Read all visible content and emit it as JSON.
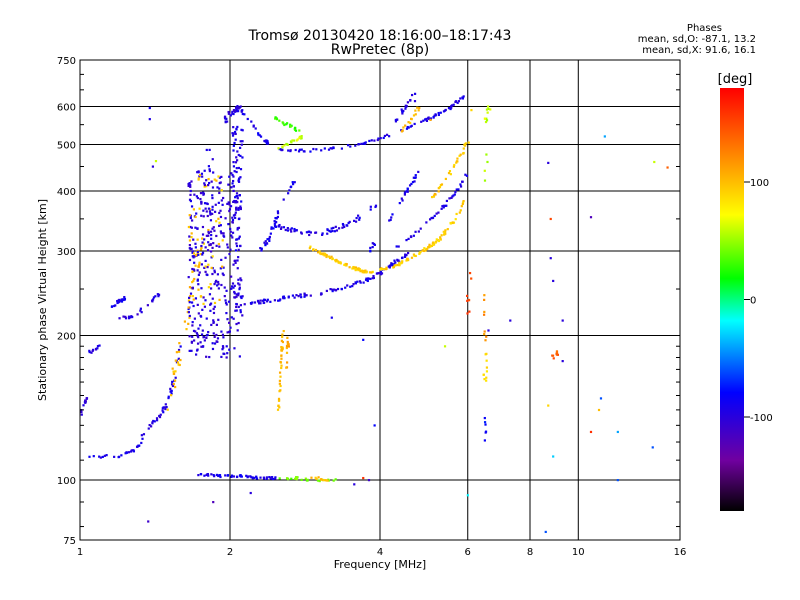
{
  "header": {
    "title": "Tromsø 20130420 18:16:00–18:17:43",
    "subtitle": "RwPretec (8p)",
    "phases_title": "Phases",
    "phases_o": "mean, sd,O: -87.1, 13.2",
    "phases_x": "mean, sd,X:  91.6, 16.1"
  },
  "colorbar": {
    "unit_label": "[deg]",
    "range": [
      -180,
      180
    ],
    "ticks": [
      {
        "value": 100,
        "label": "100"
      },
      {
        "value": 0,
        "label": "0"
      },
      {
        "value": -100,
        "label": "-100"
      }
    ]
  },
  "chart_data": {
    "type": "scatter",
    "title": "Tromsø 20130420 18:16:00–18:17:43",
    "subtitle": "RwPretec (8p)",
    "xlabel": "Frequency [MHz]",
    "ylabel": "Stationary phase Virtual Height [km]",
    "xscale": "log",
    "yscale": "log",
    "xlim": [
      1,
      16
    ],
    "ylim": [
      75,
      750
    ],
    "xticks": [
      {
        "value": 1,
        "label": "1"
      },
      {
        "value": 2,
        "label": "2"
      },
      {
        "value": 4,
        "label": "4"
      },
      {
        "value": 6,
        "label": "6"
      },
      {
        "value": 8,
        "label": "8"
      },
      {
        "value": 10,
        "label": "10"
      },
      {
        "value": 16,
        "label": "16"
      }
    ],
    "yticks": [
      {
        "value": 75,
        "label": "75"
      },
      {
        "value": 100,
        "label": "100"
      },
      {
        "value": 200,
        "label": "200"
      },
      {
        "value": 300,
        "label": "300"
      },
      {
        "value": 400,
        "label": "400"
      },
      {
        "value": 500,
        "label": "500"
      },
      {
        "value": 600,
        "label": "600"
      },
      {
        "value": 750,
        "label": "750"
      }
    ],
    "grid": true,
    "color_scale": [
      "#000000",
      "#7000a0",
      "#0000ff",
      "#00ffff",
      "#00ff00",
      "#ffff00",
      "#ff8000",
      "#ff0000"
    ],
    "traces": [
      {
        "mode": "curve",
        "phase": -95,
        "spread": 0.014,
        "n": 70,
        "x": [
          1,
          1.1,
          1.2,
          1.3,
          1.35,
          1.4,
          1.45,
          1.5,
          1.55,
          1.6,
          1.65,
          1.7
        ],
        "y": [
          112,
          112,
          112,
          116,
          126,
          132,
          137,
          145,
          165,
          195,
          230,
          260
        ]
      },
      {
        "mode": "curve",
        "phase": -100,
        "spread": 0.01,
        "n": 12,
        "x": [
          1,
          1.01,
          1.02,
          1.03
        ],
        "y": [
          135,
          140,
          145,
          148
        ]
      },
      {
        "mode": "curve",
        "phase": -95,
        "spread": 0.01,
        "n": 10,
        "x": [
          1.04,
          1.06,
          1.08,
          1.1
        ],
        "y": [
          185,
          185,
          188,
          193
        ]
      },
      {
        "mode": "curve",
        "phase": -100,
        "spread": 0.015,
        "n": 22,
        "x": [
          1.2,
          1.25,
          1.3,
          1.35,
          1.4,
          1.45
        ],
        "y": [
          218,
          218,
          222,
          230,
          238,
          245
        ]
      },
      {
        "mode": "curve",
        "phase": -90,
        "spread": 0.015,
        "n": 20,
        "x": [
          1.16,
          1.2,
          1.24
        ],
        "y": [
          230,
          235,
          240
        ]
      },
      {
        "mode": "curve",
        "phase": 100,
        "spread": 0.03,
        "n": 45,
        "x": [
          1.5,
          1.55,
          1.6,
          1.65,
          1.7,
          1.75
        ],
        "y": [
          140,
          165,
          195,
          225,
          260,
          310
        ]
      },
      {
        "mode": "block",
        "phase": -100,
        "spread": 0.03,
        "n": 320,
        "x": [
          1.65,
          2.1
        ],
        "y": [
          180,
          440
        ]
      },
      {
        "mode": "block",
        "phase": 95,
        "spread": 0.02,
        "n": 45,
        "x": [
          1.65,
          1.95
        ],
        "y": [
          230,
          440
        ]
      },
      {
        "mode": "block",
        "phase": -95,
        "spread": 0.02,
        "n": 90,
        "x": [
          2.02,
          2.12
        ],
        "y": [
          220,
          600
        ]
      },
      {
        "mode": "block",
        "phase": -100,
        "spread": 0.02,
        "n": 40,
        "x": [
          1.75,
          1.85
        ],
        "y": [
          300,
          500
        ]
      },
      {
        "mode": "curve",
        "phase": -100,
        "spread": 0.02,
        "n": 30,
        "x": [
          1.95,
          2.0,
          2.05,
          2.1
        ],
        "y": [
          560,
          580,
          590,
          600
        ]
      },
      {
        "mode": "curve",
        "phase": -95,
        "spread": 0.015,
        "n": 110,
        "x": [
          2.05,
          2.3,
          2.6,
          3.0,
          3.4,
          3.8,
          4.2,
          4.6
        ],
        "y": [
          232,
          235,
          240,
          245,
          252,
          262,
          280,
          300
        ]
      },
      {
        "mode": "curve",
        "phase": -92,
        "spread": 0.012,
        "n": 90,
        "x": [
          2.5,
          2.8,
          3.2,
          3.6,
          4.0,
          4.5,
          5.0,
          5.5,
          5.9
        ],
        "y": [
          490,
          485,
          490,
          500,
          515,
          540,
          565,
          595,
          630
        ]
      },
      {
        "mode": "curve",
        "phase": 60,
        "spread": 0.01,
        "n": 18,
        "x": [
          2.5,
          2.6,
          2.7,
          2.8
        ],
        "y": [
          490,
          500,
          510,
          520
        ]
      },
      {
        "mode": "curve",
        "phase": -90,
        "spread": 0.012,
        "n": 24,
        "x": [
          2.1,
          2.2,
          2.3,
          2.4
        ],
        "y": [
          590,
          560,
          520,
          500
        ]
      },
      {
        "mode": "curve",
        "phase": 30,
        "spread": 0.012,
        "n": 20,
        "x": [
          2.45,
          2.55,
          2.65,
          2.75
        ],
        "y": [
          570,
          555,
          545,
          535
        ]
      },
      {
        "mode": "curve",
        "phase": -95,
        "spread": 0.02,
        "n": 60,
        "x": [
          2.4,
          2.7,
          3.0,
          3.3,
          3.6,
          3.9
        ],
        "y": [
          340,
          330,
          325,
          335,
          350,
          370
        ]
      },
      {
        "mode": "curve",
        "phase": -90,
        "spread": 0.015,
        "n": 35,
        "x": [
          2.3,
          2.4,
          2.5,
          2.7
        ],
        "y": [
          300,
          320,
          360,
          420
        ]
      },
      {
        "mode": "curve",
        "phase": 95,
        "spread": 0.012,
        "n": 70,
        "x": [
          2.9,
          3.1,
          3.3,
          3.5,
          3.7,
          3.9
        ],
        "y": [
          305,
          295,
          285,
          278,
          272,
          270
        ]
      },
      {
        "mode": "curve",
        "phase": 92,
        "spread": 0.012,
        "n": 80,
        "x": [
          4.0,
          4.3,
          4.6,
          5.0,
          5.3,
          5.6,
          5.9
        ],
        "y": [
          275,
          280,
          290,
          305,
          320,
          345,
          380
        ]
      },
      {
        "mode": "curve",
        "phase": 95,
        "spread": 0.015,
        "n": 30,
        "x": [
          5.0,
          5.4,
          5.8,
          6.0
        ],
        "y": [
          380,
          420,
          470,
          510
        ]
      },
      {
        "mode": "curve",
        "phase": -95,
        "spread": 0.012,
        "n": 40,
        "x": [
          4.2,
          4.6,
          5.0,
          5.4,
          5.8,
          6.0
        ],
        "y": [
          300,
          320,
          345,
          375,
          410,
          440
        ]
      },
      {
        "mode": "curve",
        "phase": -90,
        "spread": 0.012,
        "n": 30,
        "x": [
          3.8,
          4.0,
          4.2,
          4.4,
          4.6,
          4.8
        ],
        "y": [
          300,
          325,
          350,
          380,
          410,
          440
        ]
      },
      {
        "mode": "curve",
        "phase": -95,
        "spread": 0.012,
        "n": 20,
        "x": [
          4.3,
          4.5,
          4.7
        ],
        "y": [
          560,
          600,
          640
        ]
      },
      {
        "mode": "curve",
        "phase": 100,
        "spread": 0.012,
        "n": 14,
        "x": [
          4.4,
          4.6,
          4.8
        ],
        "y": [
          530,
          560,
          600
        ]
      },
      {
        "mode": "curve",
        "phase": 100,
        "spread": 0.008,
        "n": 35,
        "x": [
          2.5,
          2.53,
          2.56
        ],
        "y": [
          140,
          175,
          205
        ]
      },
      {
        "mode": "curve",
        "phase": 110,
        "spread": 0.01,
        "n": 12,
        "x": [
          2.6,
          2.62
        ],
        "y": [
          170,
          200
        ]
      },
      {
        "mode": "curve",
        "phase": -90,
        "spread": 0.01,
        "n": 55,
        "x": [
          1.7,
          1.9,
          2.1,
          2.3,
          2.5
        ],
        "y": [
          103,
          102,
          102,
          101,
          101
        ]
      },
      {
        "mode": "curve",
        "phase": 40,
        "spread": 0.01,
        "n": 25,
        "x": [
          2.5,
          2.7,
          2.9,
          3.1,
          3.25
        ],
        "y": [
          101,
          101,
          100,
          100,
          100
        ]
      },
      {
        "mode": "curve",
        "phase": 100,
        "spread": 0.01,
        "n": 12,
        "x": [
          2.9,
          3.0,
          3.1,
          3.2
        ],
        "y": [
          101,
          101,
          100,
          100
        ]
      },
      {
        "mode": "curve",
        "phase": 60,
        "spread": 0.02,
        "n": 14,
        "x": [
          6.5,
          6.55,
          6.6
        ],
        "y": [
          420,
          560,
          600
        ]
      },
      {
        "mode": "curve",
        "phase": 90,
        "spread": 0.02,
        "n": 10,
        "x": [
          6.5,
          6.55
        ],
        "y": [
          160,
          185
        ]
      },
      {
        "mode": "curve",
        "phase": 120,
        "spread": 0.01,
        "n": 8,
        "x": [
          6.5,
          6.5
        ],
        "y": [
          190,
          260
        ]
      },
      {
        "mode": "curve",
        "phase": -80,
        "spread": 0.01,
        "n": 6,
        "x": [
          6.5,
          6.52
        ],
        "y": [
          120,
          135
        ]
      },
      {
        "mode": "curve",
        "phase": 150,
        "spread": 0.02,
        "n": 8,
        "x": [
          6.0,
          6.05
        ],
        "y": [
          210,
          270
        ]
      },
      {
        "mode": "curve",
        "phase": 140,
        "spread": 0.02,
        "n": 8,
        "x": [
          8.9,
          9.1
        ],
        "y": [
          180,
          185
        ]
      }
    ],
    "points": [
      {
        "x": 1.38,
        "y": 596,
        "phase": -90
      },
      {
        "x": 1.38,
        "y": 565,
        "phase": -95
      },
      {
        "x": 1.4,
        "y": 450,
        "phase": -100
      },
      {
        "x": 1.42,
        "y": 462,
        "phase": 60
      },
      {
        "x": 1.37,
        "y": 82,
        "phase": -110
      },
      {
        "x": 1.85,
        "y": 90,
        "phase": -120
      },
      {
        "x": 2.2,
        "y": 94,
        "phase": -100
      },
      {
        "x": 3.55,
        "y": 98,
        "phase": -100
      },
      {
        "x": 3.7,
        "y": 101,
        "phase": 160
      },
      {
        "x": 3.8,
        "y": 100,
        "phase": -110
      },
      {
        "x": 3.2,
        "y": 218,
        "phase": -90
      },
      {
        "x": 3.7,
        "y": 196,
        "phase": -80
      },
      {
        "x": 3.9,
        "y": 130,
        "phase": -80
      },
      {
        "x": 5.4,
        "y": 190,
        "phase": 60
      },
      {
        "x": 6.0,
        "y": 93,
        "phase": -20
      },
      {
        "x": 7.3,
        "y": 215,
        "phase": -100
      },
      {
        "x": 6.6,
        "y": 205,
        "phase": -100
      },
      {
        "x": 8.7,
        "y": 458,
        "phase": -100
      },
      {
        "x": 8.8,
        "y": 350,
        "phase": 150
      },
      {
        "x": 8.8,
        "y": 290,
        "phase": -100
      },
      {
        "x": 8.9,
        "y": 260,
        "phase": -100
      },
      {
        "x": 9.3,
        "y": 215,
        "phase": -100
      },
      {
        "x": 8.9,
        "y": 112,
        "phase": -30
      },
      {
        "x": 8.6,
        "y": 78,
        "phase": -60
      },
      {
        "x": 8.7,
        "y": 143,
        "phase": 90
      },
      {
        "x": 9.3,
        "y": 177,
        "phase": -100
      },
      {
        "x": 10.6,
        "y": 353,
        "phase": -120
      },
      {
        "x": 10.6,
        "y": 126,
        "phase": 160
      },
      {
        "x": 11.0,
        "y": 140,
        "phase": 100
      },
      {
        "x": 11.1,
        "y": 148,
        "phase": -60
      },
      {
        "x": 11.3,
        "y": 520,
        "phase": -40
      },
      {
        "x": 12.0,
        "y": 126,
        "phase": -40
      },
      {
        "x": 12.0,
        "y": 100,
        "phase": -60
      },
      {
        "x": 14.1,
        "y": 117,
        "phase": -60
      },
      {
        "x": 14.2,
        "y": 460,
        "phase": 60
      },
      {
        "x": 15.1,
        "y": 448,
        "phase": 140
      },
      {
        "x": 4.7,
        "y": 616,
        "phase": -100
      },
      {
        "x": 5.05,
        "y": 563,
        "phase": 110
      },
      {
        "x": 6.1,
        "y": 590,
        "phase": 90
      }
    ]
  }
}
